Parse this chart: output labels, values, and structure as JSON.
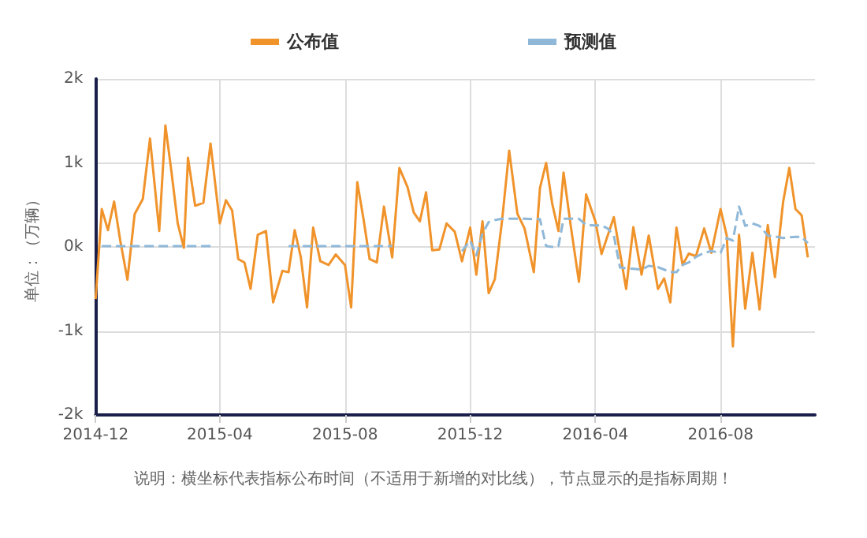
{
  "chart_data": {
    "type": "line",
    "ylabel": "单位：（万辆）",
    "annotations": [
      "说明：横坐标代表指标公布时间（不适用于新增的对比线），节点显示的是指标周期！"
    ],
    "x": [
      "2014-12-01",
      "2014-12-07",
      "2014-12-13",
      "2014-12-19",
      "2014-12-25",
      "2015-01-01",
      "2015-01-08",
      "2015-01-16",
      "2015-01-23",
      "2015-02-01",
      "2015-02-07",
      "2015-02-13",
      "2015-02-19",
      "2015-02-25",
      "2015-03-01",
      "2015-03-08",
      "2015-03-16",
      "2015-03-23",
      "2015-04-01",
      "2015-04-07",
      "2015-04-13",
      "2015-04-19",
      "2015-04-25",
      "2015-05-01",
      "2015-05-08",
      "2015-05-16",
      "2015-05-23",
      "2015-06-01",
      "2015-06-07",
      "2015-06-13",
      "2015-06-19",
      "2015-06-25",
      "2015-07-01",
      "2015-07-08",
      "2015-07-16",
      "2015-07-23",
      "2015-08-01",
      "2015-08-07",
      "2015-08-13",
      "2015-08-19",
      "2015-08-25",
      "2015-09-01",
      "2015-09-08",
      "2015-09-16",
      "2015-09-23",
      "2015-10-01",
      "2015-10-07",
      "2015-10-13",
      "2015-10-19",
      "2015-10-25",
      "2015-11-01",
      "2015-11-08",
      "2015-11-16",
      "2015-11-23",
      "2015-12-01",
      "2015-12-07",
      "2015-12-13",
      "2015-12-19",
      "2015-12-25",
      "2016-01-01",
      "2016-01-08",
      "2016-01-16",
      "2016-01-23",
      "2016-02-01",
      "2016-02-07",
      "2016-02-13",
      "2016-02-19",
      "2016-02-25",
      "2016-03-01",
      "2016-03-08",
      "2016-03-16",
      "2016-03-23",
      "2016-04-01",
      "2016-04-07",
      "2016-04-13",
      "2016-04-19",
      "2016-04-25",
      "2016-05-01",
      "2016-05-08",
      "2016-05-16",
      "2016-05-23",
      "2016-06-01",
      "2016-06-07",
      "2016-06-13",
      "2016-06-19",
      "2016-06-25",
      "2016-07-01",
      "2016-07-08",
      "2016-07-16",
      "2016-07-23",
      "2016-08-01",
      "2016-08-07",
      "2016-08-13",
      "2016-08-19",
      "2016-08-25",
      "2016-09-01",
      "2016-09-08",
      "2016-09-16",
      "2016-09-23",
      "2016-10-01",
      "2016-10-07",
      "2016-10-13",
      "2016-10-19",
      "2016-10-25"
    ],
    "series": [
      {
        "name": "公布值",
        "color": "#f0932b",
        "line_style": "solid",
        "values": [
          -620,
          450,
          200,
          540,
          75,
          -390,
          390,
          570,
          1290,
          190,
          1445,
          885,
          280,
          -10,
          1060,
          490,
          525,
          1230,
          280,
          555,
          435,
          -145,
          -185,
          -500,
          145,
          190,
          -660,
          -285,
          -300,
          200,
          -125,
          -720,
          230,
          -170,
          -215,
          -90,
          -215,
          -720,
          770,
          335,
          -145,
          -185,
          480,
          -125,
          940,
          710,
          410,
          305,
          650,
          -40,
          -30,
          280,
          180,
          -170,
          230,
          -330,
          305,
          -550,
          -385,
          305,
          1145,
          395,
          220,
          -300,
          700,
          1000,
          510,
          190,
          885,
          250,
          -415,
          625,
          305,
          -85,
          135,
          355,
          -70,
          -500,
          235,
          -330,
          135,
          -500,
          -375,
          -660,
          230,
          -215,
          -80,
          -110,
          220,
          -70,
          450,
          135,
          -1185,
          145,
          -735,
          -70,
          -745,
          260,
          -360,
          540,
          940,
          450,
          375,
          -125
        ]
      },
      {
        "name": "预测值",
        "color": "#8fb8d8",
        "line_style": "dashed",
        "values": [
          null,
          10,
          10,
          10,
          10,
          10,
          10,
          10,
          10,
          10,
          10,
          10,
          10,
          10,
          10,
          10,
          10,
          10,
          null,
          null,
          null,
          null,
          null,
          null,
          null,
          null,
          null,
          null,
          10,
          10,
          10,
          10,
          10,
          10,
          10,
          10,
          10,
          10,
          10,
          10,
          10,
          10,
          10,
          10,
          null,
          null,
          null,
          null,
          null,
          null,
          null,
          null,
          null,
          -50,
          75,
          -100,
          160,
          295,
          320,
          335,
          335,
          335,
          335,
          330,
          330,
          10,
          0,
          10,
          335,
          335,
          335,
          260,
          255,
          255,
          220,
          135,
          -245,
          -255,
          -260,
          -270,
          -225,
          -240,
          -270,
          -300,
          -300,
          -215,
          -185,
          -120,
          -70,
          -50,
          -70,
          105,
          75,
          480,
          250,
          280,
          250,
          135,
          125,
          105,
          115,
          120,
          120,
          45
        ]
      }
    ],
    "xlim": [
      "2014-12-01",
      "2016-11-01"
    ],
    "xticks": [
      "2014-12",
      "2015-04",
      "2015-08",
      "2015-12",
      "2016-04",
      "2016-08"
    ],
    "ylim": [
      -2000,
      2000
    ],
    "yticks": [
      {
        "value": -2000,
        "label": "-2k"
      },
      {
        "value": -1000,
        "label": "-1k"
      },
      {
        "value": 0,
        "label": "0k"
      },
      {
        "value": 1000,
        "label": "1k"
      },
      {
        "value": 2000,
        "label": "2k"
      }
    ],
    "grid": true,
    "legend": "top",
    "marker": "none"
  }
}
